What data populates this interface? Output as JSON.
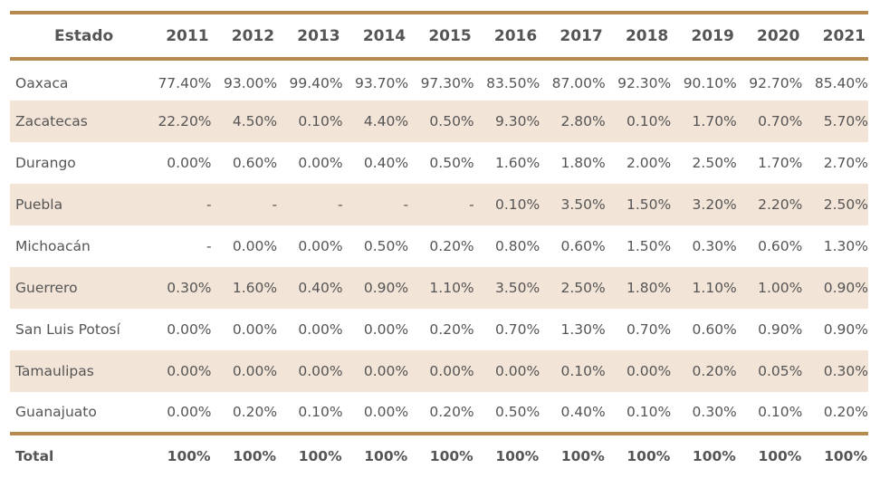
{
  "table": {
    "header": {
      "state_label": "Estado",
      "years": [
        "2011",
        "2012",
        "2013",
        "2014",
        "2015",
        "2016",
        "2017",
        "2018",
        "2019",
        "2020",
        "2021"
      ]
    },
    "rows": [
      {
        "state": "Oaxaca",
        "values": [
          "77.40%",
          "93.00%",
          "99.40%",
          "93.70%",
          "97.30%",
          "83.50%",
          "87.00%",
          "92.30%",
          "90.10%",
          "92.70%",
          "85.40%"
        ]
      },
      {
        "state": "Zacatecas",
        "values": [
          "22.20%",
          "4.50%",
          "0.10%",
          "4.40%",
          "0.50%",
          "9.30%",
          "2.80%",
          "0.10%",
          "1.70%",
          "0.70%",
          "5.70%"
        ]
      },
      {
        "state": "Durango",
        "values": [
          "0.00%",
          "0.60%",
          "0.00%",
          "0.40%",
          "0.50%",
          "1.60%",
          "1.80%",
          "2.00%",
          "2.50%",
          "1.70%",
          "2.70%"
        ]
      },
      {
        "state": "Puebla",
        "values": [
          "-",
          "-",
          "-",
          "-",
          "-",
          "0.10%",
          "3.50%",
          "1.50%",
          "3.20%",
          "2.20%",
          "2.50%"
        ]
      },
      {
        "state": "Michoacán",
        "values": [
          "-",
          "0.00%",
          "0.00%",
          "0.50%",
          "0.20%",
          "0.80%",
          "0.60%",
          "1.50%",
          "0.30%",
          "0.60%",
          "1.30%"
        ]
      },
      {
        "state": "Guerrero",
        "values": [
          "0.30%",
          "1.60%",
          "0.40%",
          "0.90%",
          "1.10%",
          "3.50%",
          "2.50%",
          "1.80%",
          "1.10%",
          "1.00%",
          "0.90%"
        ]
      },
      {
        "state": "San Luis Potosí",
        "values": [
          "0.00%",
          "0.00%",
          "0.00%",
          "0.00%",
          "0.20%",
          "0.70%",
          "1.30%",
          "0.70%",
          "0.60%",
          "0.90%",
          "0.90%"
        ]
      },
      {
        "state": "Tamaulipas",
        "values": [
          "0.00%",
          "0.00%",
          "0.00%",
          "0.00%",
          "0.00%",
          "0.00%",
          "0.10%",
          "0.00%",
          "0.20%",
          "0.05%",
          "0.30%"
        ]
      },
      {
        "state": "Guanajuato",
        "values": [
          "0.00%",
          "0.20%",
          "0.10%",
          "0.00%",
          "0.20%",
          "0.50%",
          "0.40%",
          "0.10%",
          "0.30%",
          "0.10%",
          "0.20%"
        ]
      }
    ],
    "total": {
      "label": "Total",
      "values": [
        "100%",
        "100%",
        "100%",
        "100%",
        "100%",
        "100%",
        "100%",
        "100%",
        "100%",
        "100%",
        "100%"
      ]
    }
  },
  "colors": {
    "rule": "#b8894e",
    "shaded_row": "#f3e4d8",
    "text": "#555555"
  }
}
